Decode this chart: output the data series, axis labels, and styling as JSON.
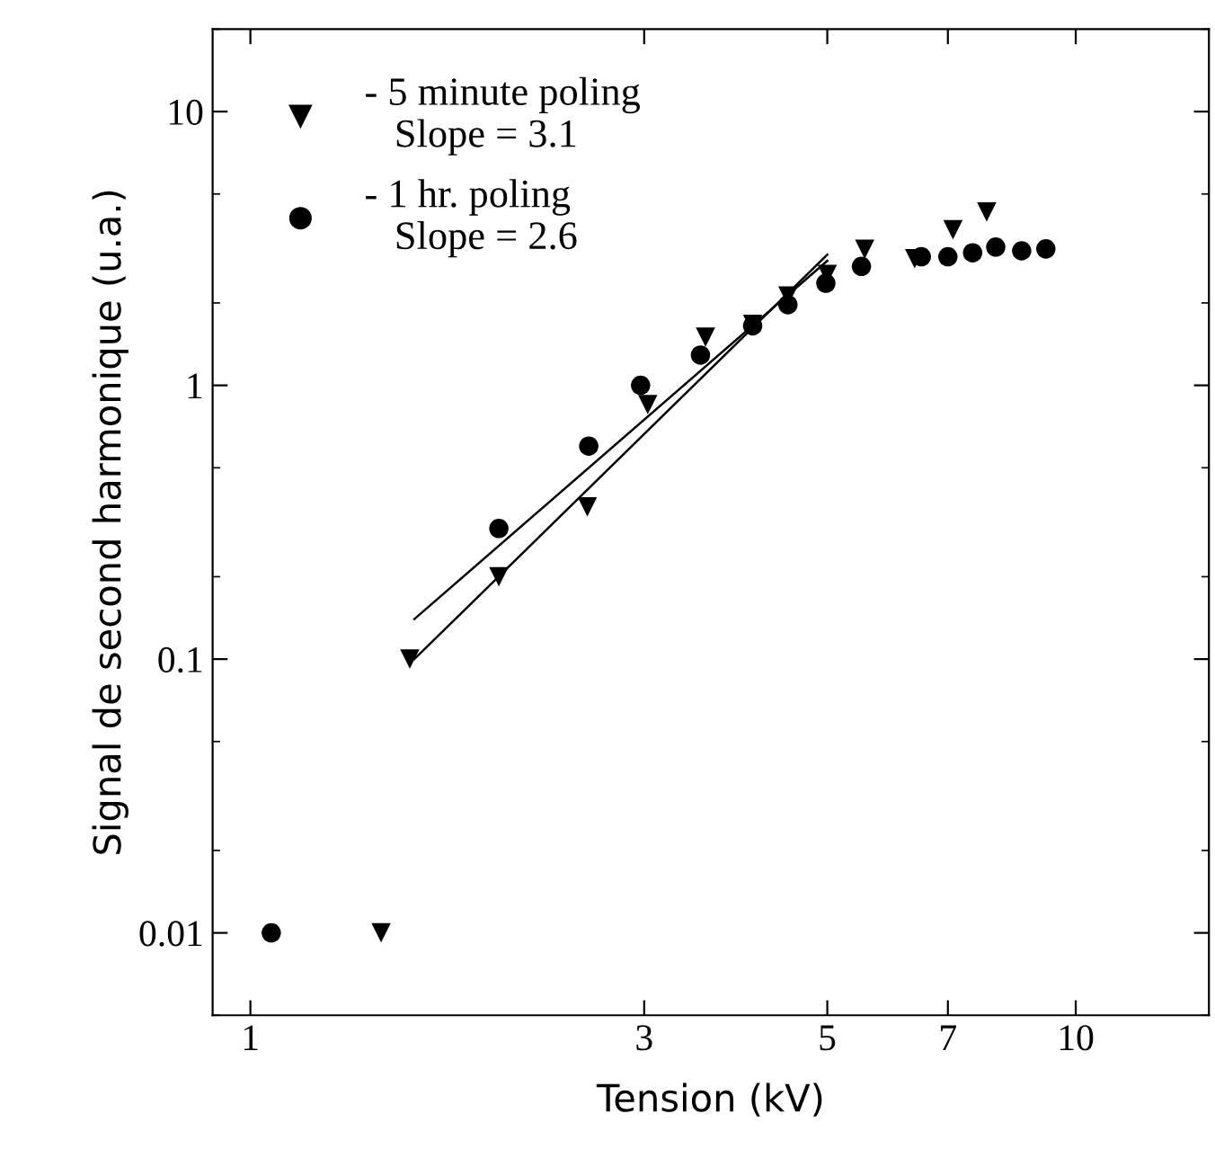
{
  "chart_data": {
    "type": "scatter",
    "xlabel": "Tension (kV)",
    "ylabel": "Signal de second harmonique (u.a.)",
    "log": "xy",
    "xlim": [
      0.9,
      14.5
    ],
    "ylim": [
      0.005,
      20
    ],
    "xticks": [
      1,
      3,
      5,
      7,
      10
    ],
    "yticks": [
      {
        "value": 0.01,
        "label": "0.01"
      },
      {
        "value": 0.1,
        "label": "0.1"
      },
      1,
      10
    ],
    "legend": "top left",
    "grid": false,
    "annotations": [
      "Slope = 3.1",
      "Slope = 2.6"
    ],
    "series": [
      {
        "name": "- 5 minute poling",
        "marker": "triangle",
        "color": "#000000",
        "x": [
          1.44,
          1.56,
          2.0,
          2.56,
          3.03,
          3.56,
          4.06,
          4.48,
          5.0,
          5.55,
          6.38,
          7.1,
          7.8
        ],
        "values": [
          0.01,
          0.1,
          0.2,
          0.36,
          0.85,
          1.5,
          1.67,
          2.12,
          2.54,
          3.14,
          2.9,
          3.7,
          4.3
        ]
      },
      {
        "name": "- 1 hr. poling",
        "marker": "circle",
        "color": "#000000",
        "x": [
          1.06,
          2.0,
          2.57,
          2.97,
          3.51,
          4.06,
          4.48,
          4.98,
          5.5,
          6.5,
          7.0,
          7.5,
          8.0,
          8.6,
          9.2
        ],
        "values": [
          0.01,
          0.3,
          0.6,
          1.0,
          1.29,
          1.65,
          1.97,
          2.36,
          2.72,
          2.95,
          2.95,
          3.05,
          3.2,
          3.1,
          3.15
        ]
      },
      {
        "type": "line",
        "marker": "none",
        "line_style": "solid",
        "color": "#000000",
        "x": [
          1.58,
          5.0
        ],
        "values": [
          0.1,
          3.0
        ]
      },
      {
        "type": "line",
        "marker": "none",
        "line_style": "solid",
        "color": "#000000",
        "x": [
          1.58,
          5.0
        ],
        "values": [
          0.14,
          2.85
        ]
      }
    ]
  }
}
